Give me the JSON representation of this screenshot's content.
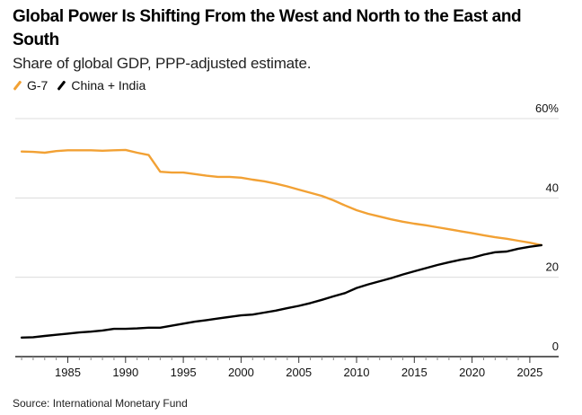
{
  "header": {
    "title": "Global Power Is Shifting From the West and North to the East and South",
    "subtitle": "Share of global GDP, PPP-adjusted estimate."
  },
  "legend": [
    {
      "label": "G-7",
      "color": "#f2a134",
      "icon": "line-swatch-icon"
    },
    {
      "label": "China + India",
      "color": "#000000",
      "icon": "line-swatch-icon"
    }
  ],
  "footer": {
    "source": "Source: International Monetary Fund"
  },
  "chart_data": {
    "type": "line",
    "title": "Global Power Is Shifting From the West and North to the East and South",
    "subtitle": "Share of global GDP, PPP-adjusted estimate.",
    "xlabel": "",
    "ylabel": "",
    "xlim": [
      1980.5,
      2028
    ],
    "ylim": [
      0,
      60
    ],
    "y_ticks": [
      0,
      20,
      40,
      60
    ],
    "y_tick_labels": [
      "0",
      "20",
      "40",
      "60%"
    ],
    "y_axis_position": "right",
    "x_major_ticks": [
      1985,
      1990,
      1995,
      2000,
      2005,
      2010,
      2015,
      2020,
      2025
    ],
    "x_minor_tick_range": [
      1981,
      2025
    ],
    "grid": true,
    "legend_position": "top-left",
    "x": [
      1981,
      1982,
      1983,
      1984,
      1985,
      1986,
      1987,
      1988,
      1989,
      1990,
      1991,
      1992,
      1993,
      1994,
      1995,
      1996,
      1997,
      1998,
      1999,
      2000,
      2001,
      2002,
      2003,
      2004,
      2005,
      2006,
      2007,
      2008,
      2009,
      2010,
      2011,
      2012,
      2013,
      2014,
      2015,
      2016,
      2017,
      2018,
      2019,
      2020,
      2021,
      2022,
      2023,
      2024,
      2025,
      2026
    ],
    "series": [
      {
        "name": "G-7",
        "color": "#f2a134",
        "values": [
          51.7,
          51.6,
          51.4,
          51.8,
          52.0,
          52.0,
          52.0,
          51.9,
          52.0,
          52.1,
          51.4,
          50.8,
          46.6,
          46.4,
          46.4,
          46.0,
          45.6,
          45.3,
          45.3,
          45.1,
          44.6,
          44.2,
          43.6,
          42.9,
          42.1,
          41.3,
          40.5,
          39.4,
          38.1,
          36.9,
          36.0,
          35.3,
          34.6,
          34.0,
          33.5,
          33.1,
          32.6,
          32.1,
          31.6,
          31.1,
          30.6,
          30.1,
          29.7,
          29.2,
          28.7,
          28.1
        ]
      },
      {
        "name": "China + India",
        "color": "#000000",
        "values": [
          4.8,
          4.9,
          5.2,
          5.5,
          5.8,
          6.1,
          6.3,
          6.6,
          7.0,
          7.0,
          7.1,
          7.3,
          7.3,
          7.8,
          8.3,
          8.8,
          9.2,
          9.6,
          10.0,
          10.4,
          10.6,
          11.1,
          11.6,
          12.2,
          12.8,
          13.5,
          14.3,
          15.2,
          16.0,
          17.3,
          18.2,
          19.0,
          19.8,
          20.7,
          21.5,
          22.3,
          23.1,
          23.8,
          24.4,
          24.9,
          25.7,
          26.3,
          26.5,
          27.2,
          27.7,
          28.1
        ]
      }
    ]
  }
}
